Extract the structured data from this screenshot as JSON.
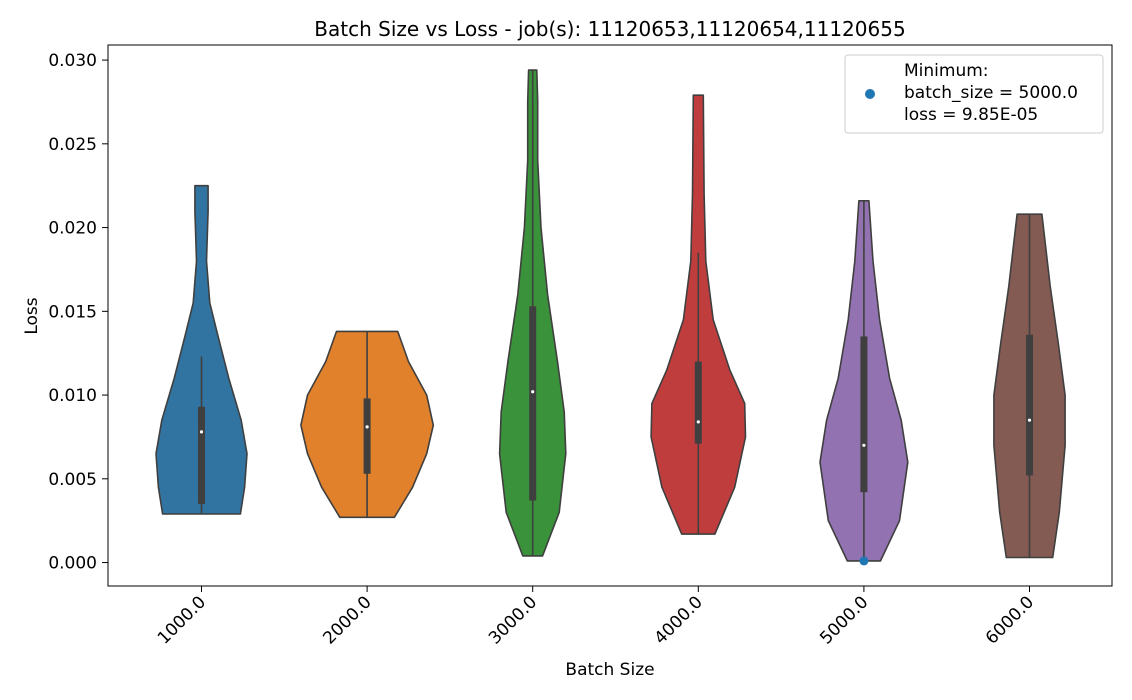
{
  "chart_data": {
    "type": "violin",
    "title": "Batch Size vs Loss - job(s): 11120653,11120654,11120655",
    "xlabel": "Batch Size",
    "ylabel": "Loss",
    "ylim": [
      -0.0014,
      0.0309
    ],
    "yticks": [
      "0.000",
      "0.005",
      "0.010",
      "0.015",
      "0.020",
      "0.025",
      "0.030"
    ],
    "grid": false,
    "legend_position": "top-right",
    "categories": [
      "1000.0",
      "2000.0",
      "3000.0",
      "4000.0",
      "5000.0",
      "6000.0"
    ],
    "violins": [
      {
        "category": "1000.0",
        "color": "#3274a1",
        "min": 0.0029,
        "max": 0.0225,
        "q1": 0.0035,
        "median": 0.0078,
        "q3": 0.0093,
        "whisker_high": 0.0123,
        "density": [
          [
            0.0029,
            0.47
          ],
          [
            0.0045,
            0.52
          ],
          [
            0.0065,
            0.55
          ],
          [
            0.0085,
            0.48
          ],
          [
            0.011,
            0.33
          ],
          [
            0.0135,
            0.2
          ],
          [
            0.0155,
            0.1
          ],
          [
            0.018,
            0.06
          ],
          [
            0.0195,
            0.07
          ],
          [
            0.021,
            0.08
          ],
          [
            0.0225,
            0.08
          ]
        ]
      },
      {
        "category": "2000.0",
        "color": "#e1812c",
        "min": 0.0027,
        "max": 0.0138,
        "q1": 0.0053,
        "median": 0.0081,
        "q3": 0.0098,
        "whisker_high": 0.0138,
        "density": [
          [
            0.0027,
            0.33
          ],
          [
            0.0045,
            0.55
          ],
          [
            0.0065,
            0.72
          ],
          [
            0.0082,
            0.8
          ],
          [
            0.01,
            0.72
          ],
          [
            0.012,
            0.5
          ],
          [
            0.0138,
            0.37
          ]
        ]
      },
      {
        "category": "3000.0",
        "color": "#3a923a",
        "min": 0.0004,
        "max": 0.0294,
        "q1": 0.0037,
        "median": 0.0102,
        "q3": 0.0153,
        "whisker_high": 0.0294,
        "density": [
          [
            0.0004,
            0.12
          ],
          [
            0.003,
            0.32
          ],
          [
            0.0065,
            0.4
          ],
          [
            0.009,
            0.38
          ],
          [
            0.012,
            0.3
          ],
          [
            0.016,
            0.18
          ],
          [
            0.02,
            0.1
          ],
          [
            0.024,
            0.06
          ],
          [
            0.0275,
            0.06
          ],
          [
            0.0294,
            0.05
          ]
        ]
      },
      {
        "category": "4000.0",
        "color": "#c03d3e",
        "min": 0.0017,
        "max": 0.0279,
        "q1": 0.0071,
        "median": 0.0084,
        "q3": 0.012,
        "whisker_high": 0.0185,
        "density": [
          [
            0.0017,
            0.2
          ],
          [
            0.0045,
            0.44
          ],
          [
            0.0075,
            0.57
          ],
          [
            0.0095,
            0.56
          ],
          [
            0.0115,
            0.38
          ],
          [
            0.0145,
            0.18
          ],
          [
            0.018,
            0.09
          ],
          [
            0.022,
            0.07
          ],
          [
            0.0279,
            0.06
          ]
        ]
      },
      {
        "category": "5000.0",
        "color": "#9372b2",
        "min": 0.0001,
        "max": 0.0216,
        "q1": 0.0042,
        "median": 0.007,
        "q3": 0.0135,
        "whisker_high": 0.0216,
        "density": [
          [
            0.0001,
            0.2
          ],
          [
            0.0025,
            0.43
          ],
          [
            0.006,
            0.53
          ],
          [
            0.0085,
            0.45
          ],
          [
            0.011,
            0.31
          ],
          [
            0.0145,
            0.19
          ],
          [
            0.018,
            0.11
          ],
          [
            0.0216,
            0.06
          ]
        ]
      },
      {
        "category": "6000.0",
        "color": "#845b53",
        "min": 0.0003,
        "max": 0.0208,
        "q1": 0.0052,
        "median": 0.0085,
        "q3": 0.0136,
        "whisker_high": 0.0208,
        "density": [
          [
            0.0003,
            0.28
          ],
          [
            0.003,
            0.36
          ],
          [
            0.007,
            0.43
          ],
          [
            0.01,
            0.43
          ],
          [
            0.013,
            0.35
          ],
          [
            0.0165,
            0.25
          ],
          [
            0.0208,
            0.15
          ]
        ]
      }
    ],
    "minimum_point": {
      "batch_size": 5000.0,
      "loss": 9.85e-05,
      "color": "#1f77b4"
    },
    "legend": {
      "lines": [
        "Minimum:",
        "batch_size = 5000.0",
        "loss = 9.85E-05"
      ],
      "marker_color": "#1f77b4"
    }
  }
}
